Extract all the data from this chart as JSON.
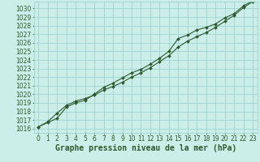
{
  "hours": [
    0,
    1,
    2,
    3,
    4,
    5,
    6,
    7,
    8,
    9,
    10,
    11,
    12,
    13,
    14,
    15,
    16,
    17,
    18,
    19,
    20,
    21,
    22,
    23
  ],
  "line1": [
    1016.2,
    1016.8,
    1017.8,
    1018.7,
    1019.2,
    1019.5,
    1019.9,
    1020.5,
    1020.9,
    1021.4,
    1022.0,
    1022.5,
    1023.1,
    1023.8,
    1024.5,
    1025.5,
    1026.2,
    1026.7,
    1027.2,
    1027.8,
    1028.5,
    1029.2,
    1030.1,
    1030.8
  ],
  "line2": [
    1016.2,
    1016.7,
    1017.2,
    1018.5,
    1019.0,
    1019.3,
    1020.0,
    1020.8,
    1021.3,
    1021.9,
    1022.5,
    1022.9,
    1023.5,
    1024.2,
    1025.0,
    1026.5,
    1026.9,
    1027.5,
    1027.8,
    1028.2,
    1028.9,
    1029.4,
    1030.3,
    1030.9
  ],
  "line_color": "#2d5a2d",
  "bg_color": "#cceee8",
  "grid_color": "#99cccc",
  "xlabel": "Graphe pression niveau de la mer (hPa)",
  "ylim_min": 1015.5,
  "ylim_max": 1030.8,
  "xlim_min": -0.5,
  "xlim_max": 23.5,
  "yticks": [
    1016,
    1017,
    1018,
    1019,
    1020,
    1021,
    1022,
    1023,
    1024,
    1025,
    1026,
    1027,
    1028,
    1029,
    1030
  ],
  "xticks": [
    0,
    1,
    2,
    3,
    4,
    5,
    6,
    7,
    8,
    9,
    10,
    11,
    12,
    13,
    14,
    15,
    16,
    17,
    18,
    19,
    20,
    21,
    22,
    23
  ],
  "tick_fontsize": 5.5,
  "xlabel_fontsize": 7,
  "linewidth": 0.8,
  "markersize": 2.0
}
